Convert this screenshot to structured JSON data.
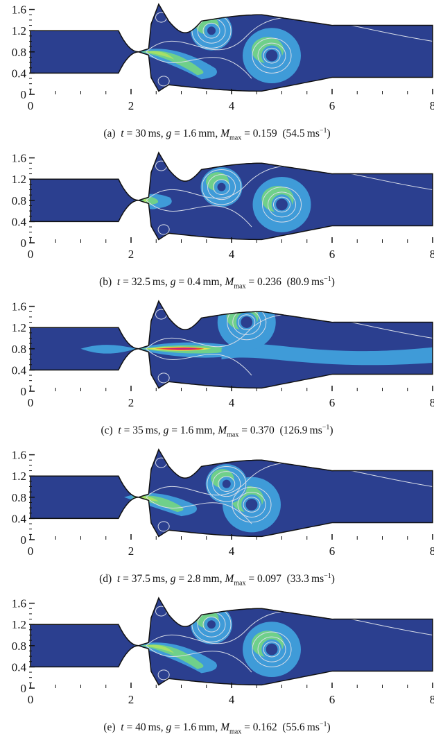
{
  "chart_data": [
    {
      "type": "contour",
      "caption": {
        "label": "(a)",
        "t": "30",
        "g": "1.6",
        "mmax": "0.159",
        "speed": "54.5"
      },
      "xlim": [
        0,
        8
      ],
      "ylim": [
        0,
        1.6
      ],
      "xticks": [
        0,
        2,
        4,
        6,
        8
      ],
      "yticks": [
        0,
        0.4,
        0.8,
        1.2,
        1.6
      ],
      "vortices": [
        {
          "x": 4.8,
          "y": 0.73
        },
        {
          "x": 3.6,
          "y": 1.2
        }
      ],
      "jet": {
        "start": 2.2,
        "end": 3.4,
        "angle": -0.15
      }
    },
    {
      "type": "contour",
      "caption": {
        "label": "(b)",
        "t": "32.5",
        "g": "0.4",
        "mmax": "0.236",
        "speed": "80.9"
      },
      "xlim": [
        0,
        8
      ],
      "ylim": [
        0,
        1.6
      ],
      "xticks": [
        0,
        2,
        4,
        6,
        8
      ],
      "yticks": [
        0,
        0.4,
        0.8,
        1.2,
        1.6
      ],
      "vortices": [
        {
          "x": 5.0,
          "y": 0.72
        },
        {
          "x": 3.8,
          "y": 1.05
        }
      ],
      "jet": {
        "start": 2.2,
        "end": 2.5,
        "angle": 0
      }
    },
    {
      "type": "contour",
      "caption": {
        "label": "(c)",
        "t": "35",
        "g": "1.6",
        "mmax": "0.370",
        "speed": "126.9"
      },
      "xlim": [
        0,
        8
      ],
      "ylim": [
        0,
        1.6
      ],
      "xticks": [
        0,
        2,
        4,
        6,
        8
      ],
      "yticks": [
        0,
        0.4,
        0.8,
        1.2,
        1.6
      ],
      "vortices": [
        {
          "x": 4.3,
          "y": 1.3
        }
      ],
      "jet": {
        "start": 2.2,
        "end": 3.8,
        "angle": 0
      }
    },
    {
      "type": "contour",
      "caption": {
        "label": "(d)",
        "t": "37.5",
        "g": "2.8",
        "mmax": "0.097",
        "speed": "33.3"
      },
      "xlim": [
        0,
        8
      ],
      "ylim": [
        0,
        1.6
      ],
      "xticks": [
        0,
        2,
        4,
        6,
        8
      ],
      "yticks": [
        0,
        0.4,
        0.8,
        1.2,
        1.6
      ],
      "vortices": [
        {
          "x": 4.4,
          "y": 0.66
        },
        {
          "x": 3.9,
          "y": 1.05
        }
      ],
      "jet": {
        "start": 2.0,
        "end": 3.0,
        "angle": -0.1
      }
    },
    {
      "type": "contour",
      "caption": {
        "label": "(e)",
        "t": "40",
        "g": "1.6",
        "mmax": "0.162",
        "speed": "55.6"
      },
      "xlim": [
        0,
        8
      ],
      "ylim": [
        0,
        1.6
      ],
      "xticks": [
        0,
        2,
        4,
        6,
        8
      ],
      "yticks": [
        0,
        0.4,
        0.8,
        1.2,
        1.6
      ],
      "vortices": [
        {
          "x": 4.8,
          "y": 0.73
        },
        {
          "x": 3.6,
          "y": 1.2
        }
      ],
      "jet": {
        "start": 2.2,
        "end": 3.4,
        "angle": -0.15
      }
    }
  ],
  "colors": {
    "domain": "#2b3f8f",
    "level1": "#3f9bd8",
    "level2": "#6fd08a",
    "level3": "#a6e067",
    "level4": "#e8e84a",
    "level5": "#e8432f",
    "level6": "#c9207c",
    "streamline": "#d8dde8",
    "outline": "#111111"
  }
}
